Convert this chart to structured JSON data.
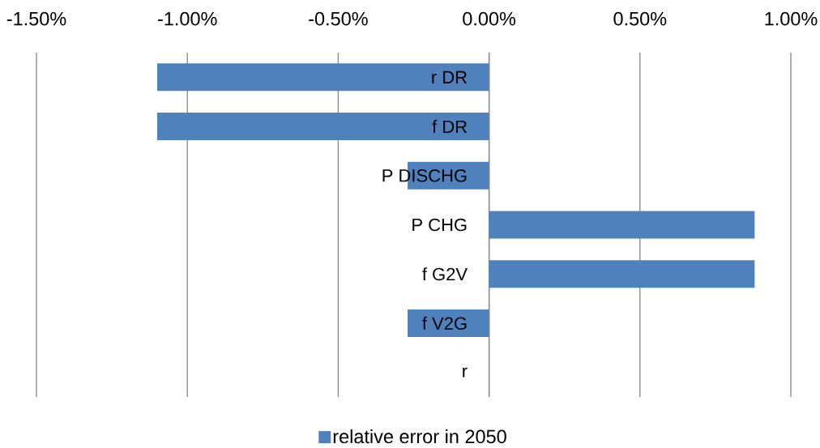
{
  "chart_data": {
    "type": "bar",
    "orientation": "horizontal",
    "categories": [
      "r DR",
      "f DR",
      "P DISCHG",
      "P CHG",
      "f G2V",
      "f V2G",
      "r"
    ],
    "series": [
      {
        "name": "relative error in 2050",
        "color": "#4f81bd",
        "values": [
          -1.1,
          -1.1,
          -0.27,
          0.88,
          0.88,
          -0.27,
          0
        ]
      }
    ],
    "xlim": [
      -1.5,
      1.0
    ],
    "xticks": [
      {
        "value": -1.5,
        "label": "-1.50%"
      },
      {
        "value": -1.0,
        "label": "-1.00%"
      },
      {
        "value": -0.5,
        "label": "-0.50%"
      },
      {
        "value": 0,
        "label": "0.00%"
      },
      {
        "value": 0.5,
        "label": "0.50%"
      },
      {
        "value": 1.0,
        "label": "1.00%"
      }
    ],
    "grid": "x",
    "legend": "bottom"
  }
}
